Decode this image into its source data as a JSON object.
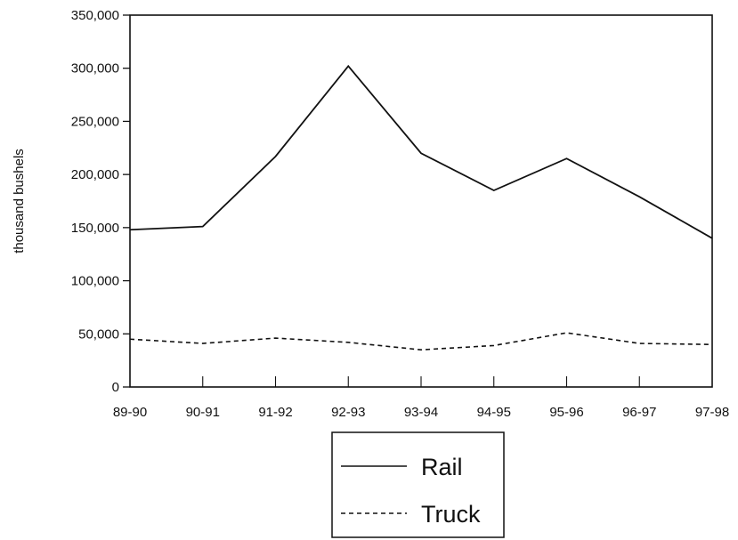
{
  "chart_data": {
    "type": "line",
    "title": "",
    "xlabel": "",
    "ylabel": "thousand bushels",
    "categories": [
      "89-90",
      "90-91",
      "91-92",
      "92-93",
      "93-94",
      "94-95",
      "95-96",
      "96-97",
      "97-98"
    ],
    "y_ticks": [
      "0",
      "50,000",
      "100,000",
      "150,000",
      "200,000",
      "250,000",
      "300,000",
      "350,000"
    ],
    "y_tick_values": [
      0,
      50000,
      100000,
      150000,
      200000,
      250000,
      300000,
      350000
    ],
    "ylim": [
      0,
      350000
    ],
    "grid": false,
    "legend_position": "bottom-center",
    "series": [
      {
        "name": "Rail",
        "line_style": "solid",
        "color": "#111111",
        "values": [
          148000,
          151000,
          217000,
          302000,
          220000,
          185000,
          215000,
          179000,
          140000
        ]
      },
      {
        "name": "Truck",
        "line_style": "dashed",
        "color": "#111111",
        "values": [
          45000,
          41000,
          46000,
          42000,
          35000,
          39000,
          51000,
          41000,
          40000
        ]
      }
    ]
  }
}
